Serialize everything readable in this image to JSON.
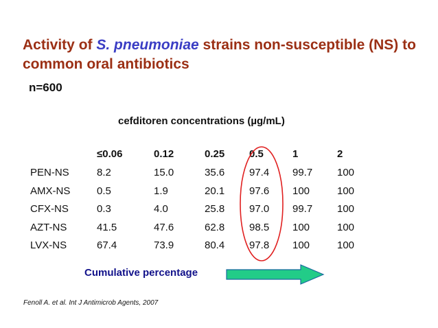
{
  "title": {
    "part1": "Activity of ",
    "organism": "S. pneumoniae",
    "part2": " strains non-susceptible (NS) to common oral antibiotics"
  },
  "sample_size": "n=600",
  "concentration_label": "cefditoren concentrations (µg/mL)",
  "table": {
    "columns": [
      "≤0.06",
      "0.12",
      "0.25",
      "0.5",
      "1",
      "2"
    ],
    "rows": [
      {
        "label": "PEN-NS",
        "values": [
          "8.2",
          "15.0",
          "35.6",
          "97.4",
          "99.7",
          "100"
        ]
      },
      {
        "label": "AMX-NS",
        "values": [
          "0.5",
          "1.9",
          "20.1",
          "97.6",
          "100",
          "100"
        ]
      },
      {
        "label": "CFX-NS",
        "values": [
          "0.3",
          "4.0",
          "25.8",
          "97.0",
          "99.7",
          "100"
        ]
      },
      {
        "label": "AZT-NS",
        "values": [
          "41.5",
          "47.6",
          "62.8",
          "98.5",
          "100",
          "100"
        ]
      },
      {
        "label": "LVX-NS",
        "values": [
          "67.4",
          "73.9",
          "80.4",
          "97.8",
          "100",
          "100"
        ]
      }
    ]
  },
  "cumulative_label": "Cumulative percentage",
  "reference": "Fenoll A. et al. Int J Antimicrob Agents, 2007",
  "colors": {
    "title": "#9b2f14",
    "organism": "#3a3dc4",
    "cumulative_label": "#11118a",
    "highlight_ellipse": "#e02020",
    "arrow_fill": "#22cc88",
    "arrow_stroke": "#1a6aa0"
  }
}
